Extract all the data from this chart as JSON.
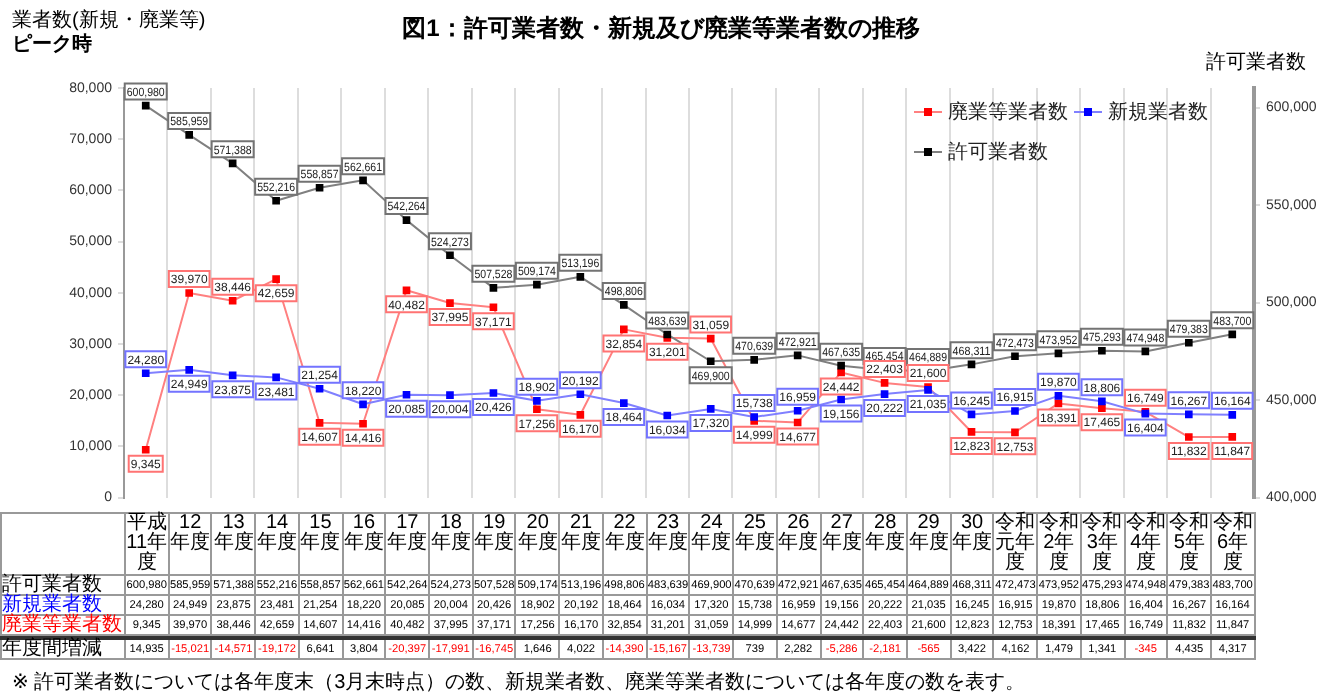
{
  "chart_data": [
    {
      "type": "line",
      "title": "図1：許可業者数・新規及び廃業等業者数の推移",
      "ylabel": "業者数(新規・廃業等)",
      "y2label": "許可業者数",
      "annotations": [
        "ピーク時",
        "※ 許可業者数については各年度末（3月末時点）の数、新規業者数、廃業等業者数については各年度の数を表す。"
      ],
      "categories": [
        "平成11年度",
        "12年度",
        "13年度",
        "14年度",
        "15年度",
        "16年度",
        "17年度",
        "18年度",
        "19年度",
        "20年度",
        "21年度",
        "22年度",
        "23年度",
        "24年度",
        "25年度",
        "26年度",
        "27年度",
        "28年度",
        "29年度",
        "30年度",
        "令和元年度",
        "令和2年度",
        "令和3年度",
        "令和4年度",
        "令和5年度",
        "令和6年度"
      ],
      "series": [
        {
          "name": "許可業者数",
          "color": "#000000",
          "axis": "y2",
          "values": [
            600980,
            585959,
            571388,
            552216,
            558857,
            562661,
            542264,
            524273,
            507528,
            509174,
            513196,
            498806,
            483639,
            469900,
            470639,
            472921,
            467635,
            465454,
            464889,
            468311,
            472473,
            473952,
            475293,
            474948,
            479383,
            483700
          ],
          "value_labels": [
            "600,980",
            "585,959",
            "571,388",
            "552,216",
            "558,857",
            "562,661",
            "542,264",
            "524,273",
            "507,528",
            "509,174",
            "513,196",
            "498,806",
            "483,639",
            "469,900",
            "470,639",
            "472,921",
            "467,635",
            "465,454",
            "464,889",
            "468,311",
            "472,473",
            "473,952",
            "475,293",
            "474,948",
            "479,383",
            "483,700"
          ]
        },
        {
          "name": "新規業者数",
          "color": "#0000ff",
          "values": [
            24280,
            24949,
            23875,
            23481,
            21254,
            18220,
            20085,
            20004,
            20426,
            18902,
            20192,
            18464,
            16034,
            17320,
            15738,
            16959,
            19156,
            20222,
            21035,
            16245,
            16915,
            19870,
            18806,
            16404,
            16267,
            16164
          ],
          "value_labels": [
            "24,280",
            "24,949",
            "23,875",
            "23,481",
            "21,254",
            "18,220",
            "20,085",
            "20,004",
            "20,426",
            "18,902",
            "20,192",
            "18,464",
            "16,034",
            "17,320",
            "15,738",
            "16,959",
            "19,156",
            "20,222",
            "21,035",
            "16,245",
            "16,915",
            "19,870",
            "18,806",
            "16,404",
            "16,267",
            "16,164"
          ]
        },
        {
          "name": "廃業等業者数",
          "color": "#ff0000",
          "values": [
            9345,
            39970,
            38446,
            42659,
            14607,
            14416,
            40482,
            37995,
            37171,
            17256,
            16170,
            32854,
            31201,
            31059,
            14999,
            14677,
            24442,
            22403,
            21600,
            12823,
            12753,
            18391,
            17465,
            16749,
            11832,
            11847
          ],
          "value_labels": [
            "9,345",
            "39,970",
            "38,446",
            "42,659",
            "14,607",
            "14,416",
            "40,482",
            "37,995",
            "37,171",
            "17,256",
            "16,170",
            "32,854",
            "31,201",
            "31,059",
            "14,999",
            "14,677",
            "24,442",
            "22,403",
            "21,600",
            "12,823",
            "12,753",
            "18,391",
            "17,465",
            "16,749",
            "11,832",
            "11,847"
          ]
        }
      ],
      "ylim": [
        0,
        80000
      ],
      "yticks": [
        {
          "value": 0,
          "label": "0"
        },
        {
          "value": 10000,
          "label": "10,000"
        },
        {
          "value": 20000,
          "label": "20,000"
        },
        {
          "value": 30000,
          "label": "30,000"
        },
        {
          "value": 40000,
          "label": "40,000"
        },
        {
          "value": 50000,
          "label": "50,000"
        },
        {
          "value": 60000,
          "label": "60,000"
        },
        {
          "value": 70000,
          "label": "70,000"
        },
        {
          "value": 80000,
          "label": "80,000"
        }
      ],
      "y2lim": [
        400000,
        610000
      ],
      "y2ticks": [
        {
          "value": 400000,
          "label": "400,000"
        },
        {
          "value": 450000,
          "label": "450,000"
        },
        {
          "value": 500000,
          "label": "500,000"
        },
        {
          "value": 550000,
          "label": "550,000"
        },
        {
          "value": 600000,
          "label": "600,000"
        }
      ],
      "grid": "x",
      "legend": "top right",
      "marker": "square",
      "line_style": "solid"
    },
    {
      "type": "other",
      "series": [
        {
          "name": "年度間増減",
          "values": [
            14935,
            -15021,
            -14571,
            -19172,
            6641,
            3804,
            -20397,
            -17991,
            -16745,
            1646,
            4022,
            -14390,
            -15167,
            -13739,
            739,
            2282,
            -5286,
            -2181,
            -565,
            3422,
            4162,
            1479,
            1341,
            -345,
            4435,
            4317
          ],
          "value_labels": [
            "14,935",
            "-15,021",
            "-14,571",
            "-19,172",
            "6,641",
            "3,804",
            "-20,397",
            "-17,991",
            "-16,745",
            "1,646",
            "4,022",
            "-14,390",
            "-15,167",
            "-13,739",
            "739",
            "2,282",
            "-5,286",
            "-2,181",
            "-565",
            "3,422",
            "4,162",
            "1,479",
            "1,341",
            "-345",
            "4,435",
            "4,317"
          ]
        }
      ]
    }
  ]
}
